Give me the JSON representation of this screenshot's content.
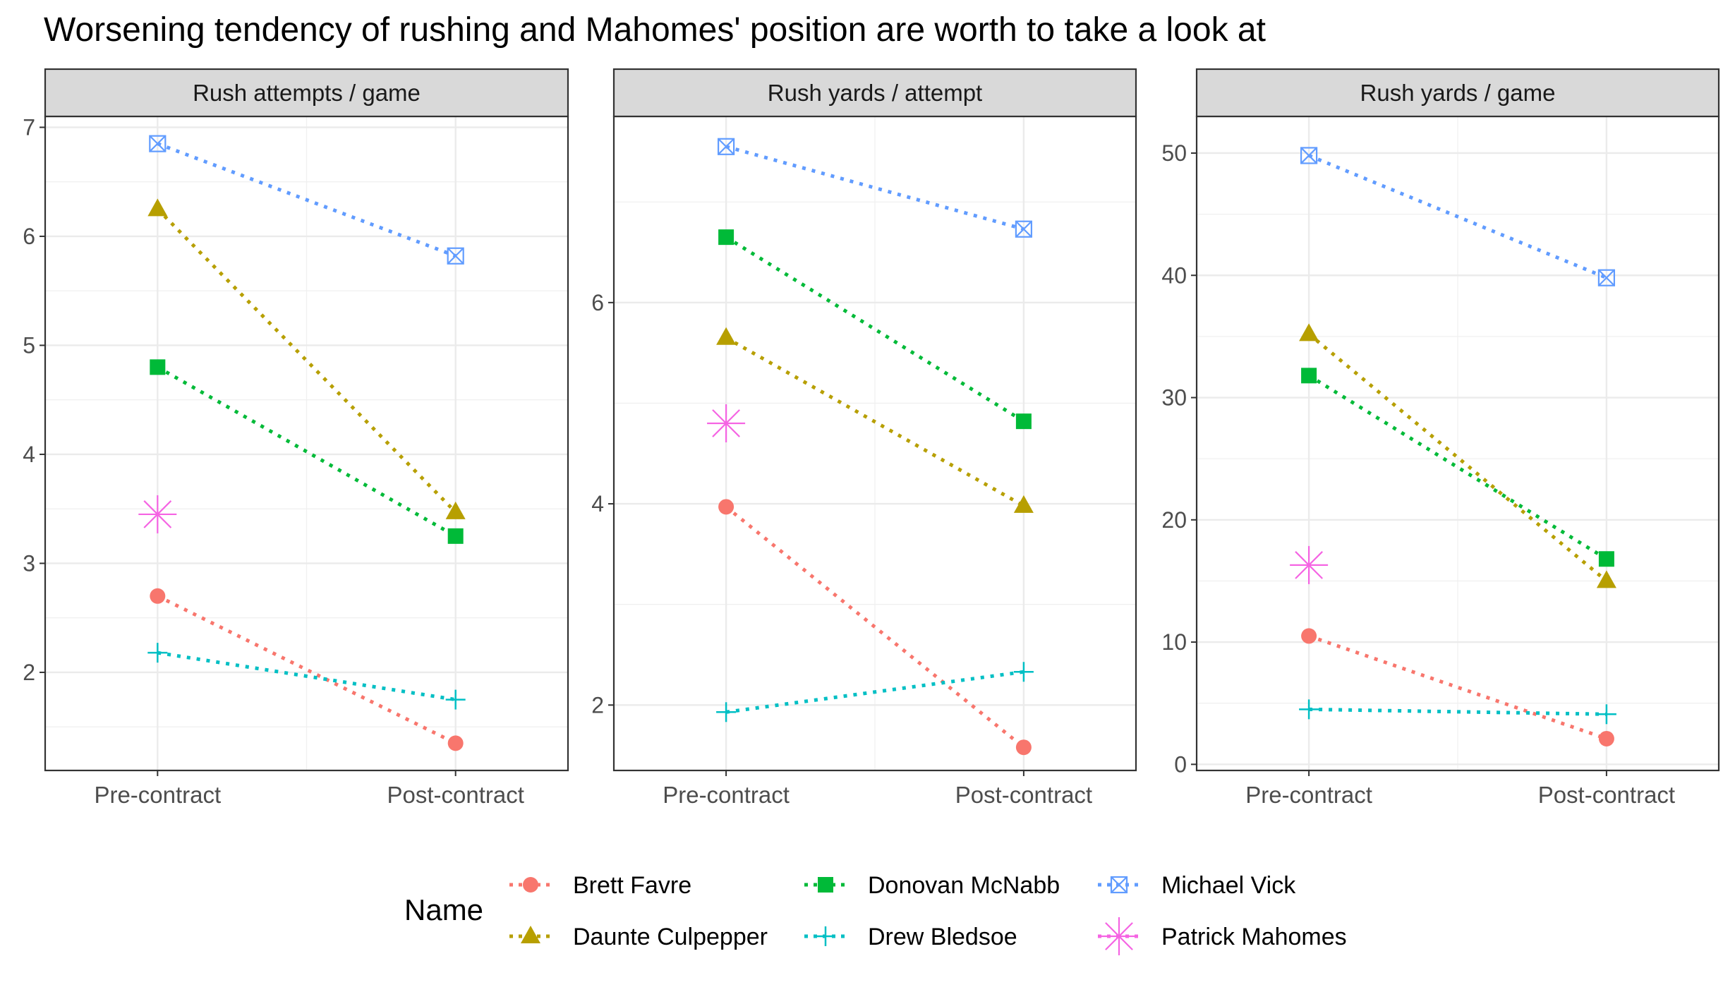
{
  "title": "Worsening tendency of rushing and Mahomes' position are worth to take a look at",
  "chart_data": {
    "type": "line",
    "x_categories": [
      "Pre-contract",
      "Post-contract"
    ],
    "legend": {
      "title": "Name",
      "position": "bottom"
    },
    "grid": true,
    "series": [
      {
        "name": "Brett Favre",
        "color": "#F8766D",
        "shape": "circle"
      },
      {
        "name": "Daunte Culpepper",
        "color": "#B79F00",
        "shape": "triangle"
      },
      {
        "name": "Donovan McNabb",
        "color": "#00BA38",
        "shape": "square"
      },
      {
        "name": "Drew Bledsoe",
        "color": "#00BFC4",
        "shape": "plus"
      },
      {
        "name": "Michael Vick",
        "color": "#619CFF",
        "shape": "square-cross"
      },
      {
        "name": "Patrick Mahomes",
        "color": "#F564E3",
        "shape": "asterisk"
      }
    ],
    "facets": [
      {
        "strip": "Rush attempts / game",
        "ylim": [
          1.1,
          7.1
        ],
        "yticks": [
          2,
          3,
          4,
          5,
          6,
          7
        ],
        "values": {
          "Brett Favre": [
            2.7,
            1.35
          ],
          "Daunte Culpepper": [
            6.25,
            3.47
          ],
          "Donovan McNabb": [
            4.8,
            3.25
          ],
          "Drew Bledsoe": [
            2.18,
            1.75
          ],
          "Michael Vick": [
            6.85,
            5.82
          ],
          "Patrick Mahomes": [
            3.45,
            null
          ]
        }
      },
      {
        "strip": "Rush yards / attempt",
        "ylim": [
          1.35,
          7.85
        ],
        "yticks": [
          2,
          4,
          6
        ],
        "values": {
          "Brett Favre": [
            3.97,
            1.58
          ],
          "Daunte Culpepper": [
            5.65,
            3.98
          ],
          "Donovan McNabb": [
            6.65,
            4.82
          ],
          "Drew Bledsoe": [
            1.93,
            2.33
          ],
          "Michael Vick": [
            7.55,
            6.73
          ],
          "Patrick Mahomes": [
            4.8,
            null
          ]
        }
      },
      {
        "strip": "Rush yards / game",
        "ylim": [
          -0.5,
          53.0
        ],
        "yticks": [
          0,
          10,
          20,
          30,
          40,
          50
        ],
        "values": {
          "Brett Favre": [
            10.5,
            2.1
          ],
          "Daunte Culpepper": [
            35.2,
            15.0
          ],
          "Donovan McNabb": [
            31.8,
            16.8
          ],
          "Drew Bledsoe": [
            4.5,
            4.1
          ],
          "Michael Vick": [
            49.8,
            39.8
          ],
          "Patrick Mahomes": [
            16.3,
            null
          ]
        }
      }
    ]
  }
}
